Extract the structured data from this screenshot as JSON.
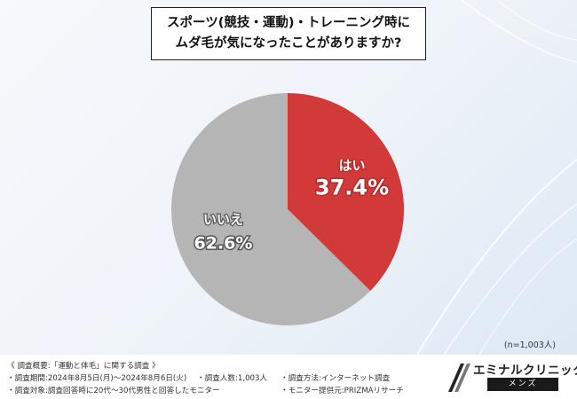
{
  "title": {
    "line1": "スポーツ(競技・運動)・トレーニング時に",
    "line2": "ムダ毛が気になったことがありますか?"
  },
  "chart_data": {
    "type": "pie",
    "slices": [
      {
        "label": "はい",
        "value": 37.4,
        "value_label": "37.4%",
        "color": "#d23a3a"
      },
      {
        "label": "いいえ",
        "value": 62.6,
        "value_label": "62.6%",
        "color": "#b5b5b5"
      }
    ]
  },
  "sample_size": "(n=1,003人)",
  "footer": {
    "heading": "《 調査概要:「運動と体毛」に関する調査 》",
    "period": "・調査期間:2024年8月5日(月)〜2024年8月6日(火)",
    "count": "・調査人数:1,003人",
    "method": "・調査方法:インターネット調査",
    "target": "・調査対象:調査回答時に20代〜30代男性と回答したモニター",
    "provider": "・モニター提供元:PRIZMAリサーチ"
  },
  "logo": {
    "name": "エミナルクリニック",
    "sub": "メンズ"
  },
  "colors": {
    "yes": "#d23a3a",
    "no": "#b5b5b5"
  }
}
